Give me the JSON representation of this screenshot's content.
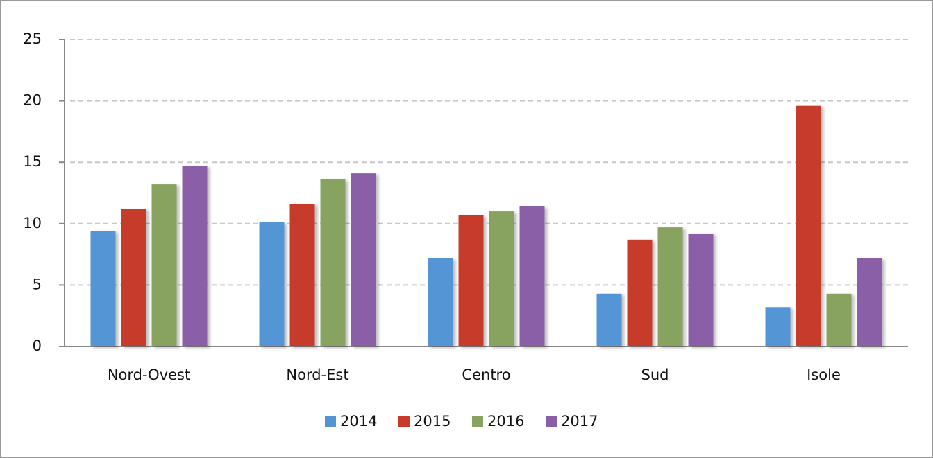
{
  "chart_data": {
    "type": "bar",
    "categories": [
      "Nord-Ovest",
      "Nord-Est",
      "Centro",
      "Sud",
      "Isole"
    ],
    "series": [
      {
        "name": "2014",
        "color": "#5295d5",
        "values": [
          9.4,
          10.1,
          7.2,
          4.3,
          3.2
        ]
      },
      {
        "name": "2015",
        "color": "#c73a2c",
        "values": [
          11.2,
          11.6,
          10.7,
          8.7,
          19.6
        ]
      },
      {
        "name": "2016",
        "color": "#87a35e",
        "values": [
          13.2,
          13.6,
          11.0,
          9.7,
          4.3
        ]
      },
      {
        "name": "2017",
        "color": "#8a5fa8",
        "values": [
          14.7,
          14.1,
          11.4,
          9.2,
          7.2
        ]
      }
    ],
    "ylim": [
      0,
      25
    ],
    "yticks": [
      0,
      5,
      10,
      15,
      20,
      25
    ],
    "grid": true,
    "legend": "bottom"
  }
}
